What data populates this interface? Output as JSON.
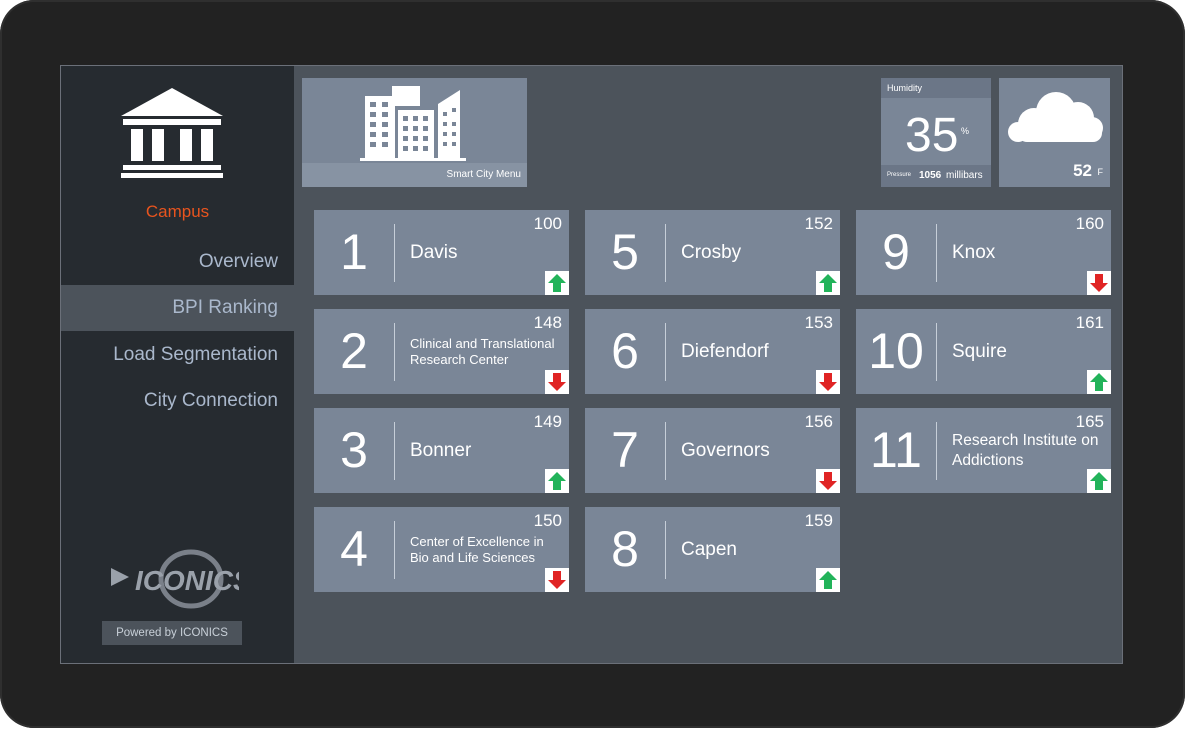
{
  "sidebar": {
    "section_title": "Campus",
    "nav": [
      {
        "label": "Overview",
        "active": false
      },
      {
        "label": "BPI Ranking",
        "active": true
      },
      {
        "label": "Load Segmentation",
        "active": false
      },
      {
        "label": "City Connection",
        "active": false
      }
    ],
    "brand_logo_text": "ICONICS",
    "powered_by": "Powered by ICONICS"
  },
  "header": {
    "city_menu_label": "Smart City Menu",
    "humidity": {
      "label": "Humidity",
      "value": "35",
      "unit": "%",
      "pressure_label": "Pressure",
      "pressure_value": "1056",
      "pressure_unit": "millibars"
    },
    "weather": {
      "icon": "cloud-icon",
      "temperature": "52",
      "unit": "F"
    }
  },
  "rankings": [
    {
      "rank": "1",
      "name": "Davis",
      "score": "100",
      "trend": "up"
    },
    {
      "rank": "2",
      "name": "Clinical and Translational Research Center",
      "score": "148",
      "trend": "down"
    },
    {
      "rank": "3",
      "name": "Bonner",
      "score": "149",
      "trend": "up"
    },
    {
      "rank": "4",
      "name": "Center of Excellence in Bio and Life Sciences",
      "score": "150",
      "trend": "down"
    },
    {
      "rank": "5",
      "name": "Crosby",
      "score": "152",
      "trend": "up"
    },
    {
      "rank": "6",
      "name": "Diefendorf",
      "score": "153",
      "trend": "down"
    },
    {
      "rank": "7",
      "name": "Governors",
      "score": "156",
      "trend": "down"
    },
    {
      "rank": "8",
      "name": "Capen",
      "score": "159",
      "trend": "up"
    },
    {
      "rank": "9",
      "name": "Knox",
      "score": "160",
      "trend": "down"
    },
    {
      "rank": "10",
      "name": "Squire",
      "score": "161",
      "trend": "up"
    },
    {
      "rank": "11",
      "name": "Research Institute on Addictions",
      "score": "165",
      "trend": "up"
    }
  ],
  "colors": {
    "accent": "#e8541e",
    "up_arrow": "#22b35a",
    "down_arrow": "#e02424",
    "tile": "#7a8697",
    "sidebar": "#262b30",
    "content_bg": "#4c535b"
  }
}
